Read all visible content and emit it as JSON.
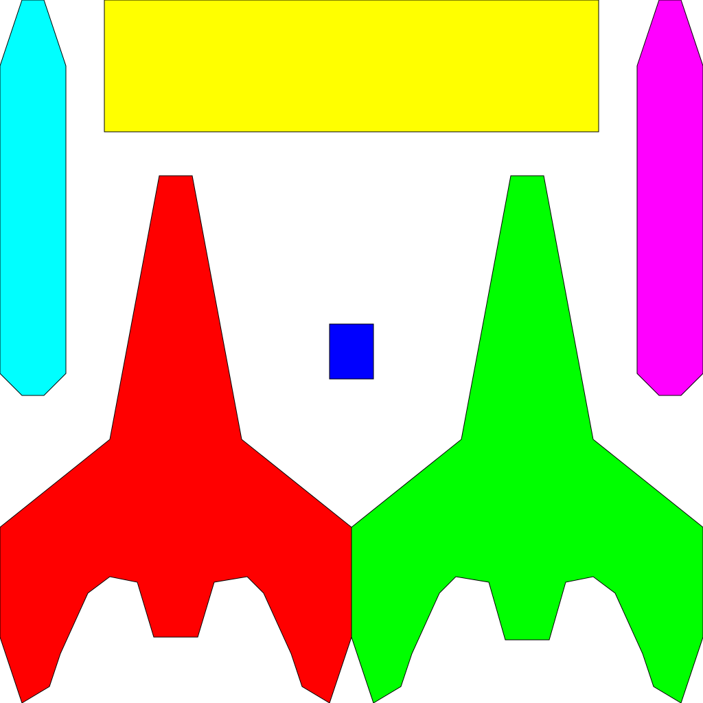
{
  "sprite_sheet": {
    "background": "#ffffff",
    "outline_color": "#000000",
    "sprites": {
      "left_missile": {
        "kind": "missile",
        "color": "#00ffff"
      },
      "right_missile": {
        "kind": "missile",
        "color": "#ff00ff"
      },
      "top_bar": {
        "kind": "bar",
        "color": "#ffff00"
      },
      "red_ship": {
        "kind": "ship",
        "color": "#ff0000"
      },
      "green_ship": {
        "kind": "ship",
        "color": "#00ff00"
      },
      "bullet": {
        "kind": "bullet",
        "color": "#0000ff"
      }
    }
  }
}
